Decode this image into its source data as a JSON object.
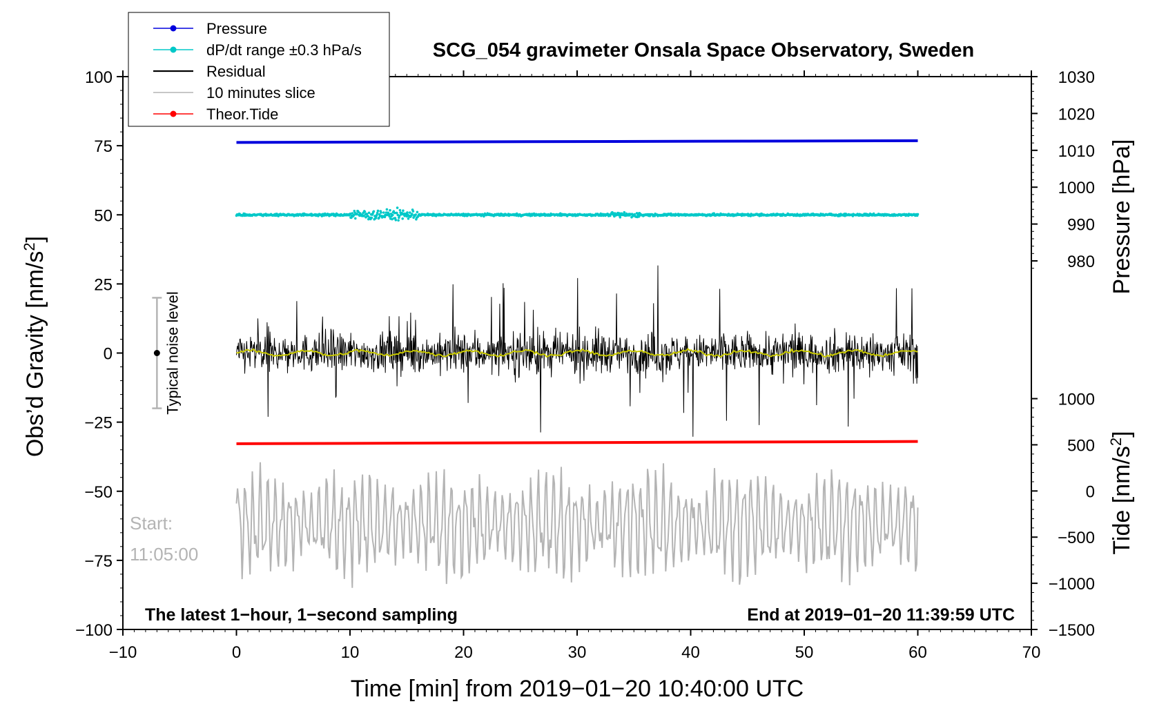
{
  "chart_data": {
    "type": "line",
    "title": "SCG_054 gravimeter Onsala Space Observatory, Sweden",
    "xlabel": "Time [min] from 2019−01−20 10:40:00 UTC",
    "ylabel_left": "Obs’d Gravity [nm/s²]",
    "ylabel_pressure": "Pressure [hPa]",
    "ylabel_tide": "Tide [nm/s²]",
    "xlim": [
      -10,
      70
    ],
    "ylim_left": [
      -100,
      100
    ],
    "x_ticks": [
      -10,
      0,
      10,
      20,
      30,
      40,
      50,
      60,
      70
    ],
    "x_tick_labels": [
      "−10",
      "0",
      "10",
      "20",
      "30",
      "40",
      "50",
      "60",
      "70"
    ],
    "y_left_ticks": [
      100,
      75,
      50,
      25,
      0,
      -25,
      -50,
      -75,
      -100
    ],
    "y_left_tick_labels": [
      "100",
      "75",
      "50",
      "25",
      "0",
      "−25",
      "−50",
      "−75",
      "−100"
    ],
    "pressure_ticks": [
      1030,
      1020,
      1010,
      1000,
      990,
      980
    ],
    "pressure_tick_labels": [
      "1030",
      "1020",
      "1010",
      "1000",
      "990",
      "980"
    ],
    "tide_ticks": [
      1000,
      500,
      0,
      -500,
      -1000,
      -1500
    ],
    "tide_tick_labels": [
      "1000",
      "500",
      "0",
      "−500",
      "−1000",
      "−1500"
    ],
    "legend": [
      {
        "label": "Pressure",
        "color": "#0000dd",
        "marker": true
      },
      {
        "label": "dP/dt range ±0.3 hPa/s",
        "color": "#00c8c8",
        "marker": true
      },
      {
        "label": "Residual",
        "color": "#000000",
        "marker": false
      },
      {
        "label": "10 minutes slice",
        "color": "#b4b4b4",
        "marker": false
      },
      {
        "label": "Theor.Tide",
        "color": "#ff0000",
        "marker": true
      }
    ],
    "series": [
      {
        "name": "Pressure",
        "color": "#0000dd",
        "x_range": [
          0,
          60
        ],
        "y_start": 76.2,
        "y_end": 76.8
      },
      {
        "name": "dP/dt range ±0.3 hPa/s",
        "color": "#00c8c8",
        "x_range": [
          0,
          60
        ],
        "y_center": 50,
        "amplitude": 3.5
      },
      {
        "name": "Residual",
        "color": "#000000",
        "x_range": [
          0,
          60
        ],
        "y_center": 0,
        "amplitude": 30
      },
      {
        "name": "Residual smoothed",
        "color": "#c8c800",
        "x_range": [
          0,
          60
        ],
        "y_center": 0,
        "amplitude": 1.5
      },
      {
        "name": "10 minutes slice",
        "color": "#b4b4b4",
        "x_range": [
          0,
          60
        ],
        "y_center": -62,
        "amplitude": 20
      },
      {
        "name": "Theor.Tide",
        "color": "#ff0000",
        "x_range": [
          0,
          60
        ],
        "y_start": -32.8,
        "y_end": -32.0
      }
    ],
    "noise_bar": {
      "x": -7,
      "y_low": -20,
      "y_high": 20,
      "label": "Typical noise level"
    },
    "annotations": {
      "start_label": "Start:",
      "start_time": "11:05:00",
      "bottom_left": "The latest 1−hour, 1−second sampling",
      "bottom_right": "End at 2019−01−20 11:39:59 UTC"
    }
  }
}
